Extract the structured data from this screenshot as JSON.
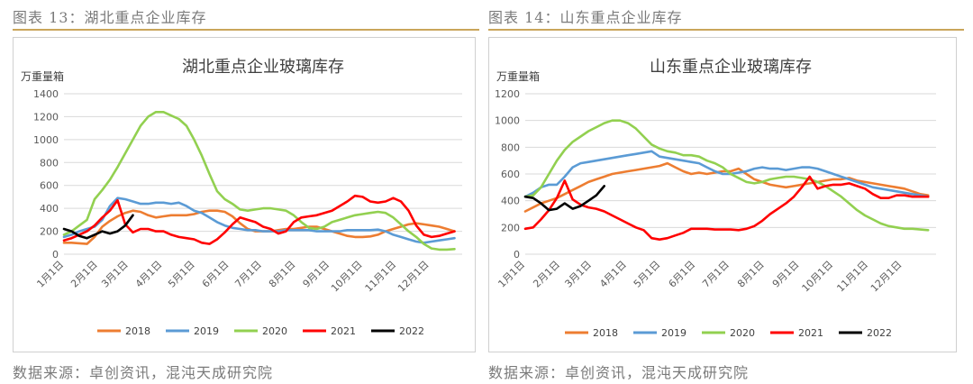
{
  "figures": [
    {
      "caption": "图表 13：湖北重点企业库存",
      "source": "数据来源：卓创资讯，混沌天成研究院"
    },
    {
      "caption": "图表 14：山东重点企业库存",
      "source": "数据来源：卓创资讯，混沌天成研究院"
    }
  ],
  "colors": {
    "2018": "#ed7d31",
    "2019": "#5b9bd5",
    "2020": "#92d050",
    "2021": "#ff0000",
    "2022": "#000000",
    "rule": "#c9a55a"
  },
  "chart_data": [
    {
      "type": "line",
      "title": "湖北重点企业玻璃库存",
      "ylabel": "万重量箱",
      "ylim": [
        0,
        1400
      ],
      "yticks": [
        0,
        200,
        400,
        600,
        800,
        1000,
        1200,
        1400
      ],
      "xlim": [
        1,
        53
      ],
      "xtick_labels": [
        "1月1日",
        "2月1日",
        "3月1日",
        "4月1日",
        "5月1日",
        "6月1日",
        "7月1日",
        "8月1日",
        "9月1日",
        "10月1日",
        "11月1日",
        "12月1日"
      ],
      "legend_position": "bottom",
      "grid": "horizontal",
      "series": [
        {
          "name": "2018",
          "x": [
            1,
            2,
            3,
            4,
            5,
            6,
            7,
            8,
            9,
            10,
            11,
            12,
            13,
            14,
            15,
            16,
            17,
            18,
            19,
            20,
            21,
            22,
            23,
            24,
            25,
            26,
            27,
            28,
            29,
            30,
            31,
            32,
            33,
            34,
            35,
            36,
            37,
            38,
            39,
            40,
            41,
            42,
            43,
            44,
            45,
            46,
            47,
            48,
            49,
            50,
            51,
            52
          ],
          "values": [
            100,
            100,
            95,
            90,
            150,
            240,
            290,
            330,
            360,
            380,
            370,
            340,
            320,
            330,
            340,
            340,
            340,
            350,
            370,
            380,
            380,
            370,
            330,
            270,
            220,
            200,
            200,
            200,
            210,
            220,
            220,
            230,
            240,
            240,
            220,
            200,
            180,
            160,
            150,
            150,
            155,
            170,
            200,
            220,
            240,
            260,
            270,
            260,
            250,
            240,
            220,
            200
          ]
        },
        {
          "name": "2019",
          "x": [
            1,
            2,
            3,
            4,
            5,
            6,
            7,
            8,
            9,
            10,
            11,
            12,
            13,
            14,
            15,
            16,
            17,
            18,
            19,
            20,
            21,
            22,
            23,
            24,
            25,
            26,
            27,
            28,
            29,
            30,
            31,
            32,
            33,
            34,
            35,
            36,
            37,
            38,
            39,
            40,
            41,
            42,
            43,
            44,
            45,
            46,
            47,
            48,
            49,
            50,
            51,
            52
          ],
          "values": [
            150,
            170,
            200,
            220,
            240,
            300,
            420,
            490,
            480,
            460,
            440,
            440,
            450,
            450,
            440,
            450,
            420,
            380,
            360,
            320,
            280,
            250,
            230,
            220,
            210,
            210,
            200,
            200,
            200,
            210,
            210,
            210,
            210,
            200,
            200,
            200,
            200,
            210,
            210,
            210,
            210,
            215,
            200,
            170,
            150,
            130,
            110,
            100,
            110,
            120,
            130,
            140
          ]
        },
        {
          "name": "2020",
          "x": [
            1,
            2,
            3,
            4,
            5,
            6,
            7,
            8,
            9,
            10,
            11,
            12,
            13,
            14,
            15,
            16,
            17,
            18,
            19,
            20,
            21,
            22,
            23,
            24,
            25,
            26,
            27,
            28,
            29,
            30,
            31,
            32,
            33,
            34,
            35,
            36,
            37,
            38,
            39,
            40,
            41,
            42,
            43,
            44,
            45,
            46,
            47,
            48,
            49,
            50,
            51,
            52
          ],
          "values": [
            170,
            200,
            250,
            300,
            480,
            560,
            650,
            760,
            880,
            1000,
            1120,
            1200,
            1240,
            1240,
            1210,
            1180,
            1120,
            1000,
            860,
            700,
            550,
            480,
            440,
            390,
            380,
            390,
            400,
            400,
            390,
            380,
            340,
            280,
            230,
            220,
            240,
            280,
            300,
            320,
            340,
            350,
            360,
            370,
            360,
            320,
            260,
            200,
            150,
            90,
            50,
            40,
            40,
            45
          ]
        },
        {
          "name": "2021",
          "x": [
            1,
            2,
            3,
            4,
            5,
            6,
            7,
            8,
            9,
            10,
            11,
            12,
            13,
            14,
            15,
            16,
            17,
            18,
            19,
            20,
            21,
            22,
            23,
            24,
            25,
            26,
            27,
            28,
            29,
            30,
            31,
            32,
            33,
            34,
            35,
            36,
            37,
            38,
            39,
            40,
            41,
            42,
            43,
            44,
            45,
            46,
            47,
            48,
            49,
            50,
            51,
            52
          ],
          "values": [
            120,
            140,
            170,
            200,
            250,
            320,
            380,
            470,
            260,
            190,
            220,
            220,
            200,
            200,
            170,
            150,
            140,
            130,
            100,
            90,
            130,
            190,
            260,
            320,
            300,
            280,
            240,
            220,
            180,
            200,
            280,
            320,
            330,
            340,
            360,
            380,
            420,
            460,
            510,
            500,
            460,
            450,
            460,
            490,
            460,
            380,
            250,
            170,
            150,
            160,
            180,
            200
          ]
        },
        {
          "name": "2022",
          "x": [
            1,
            2,
            3,
            4,
            5,
            6,
            7,
            8,
            9,
            10
          ],
          "values": [
            220,
            200,
            160,
            140,
            170,
            200,
            180,
            200,
            250,
            340
          ]
        }
      ]
    },
    {
      "type": "line",
      "title": "山东重点企业玻璃库存",
      "ylabel": "万重量箱",
      "ylim": [
        0,
        1200
      ],
      "yticks": [
        0,
        200,
        400,
        600,
        800,
        1000,
        1200
      ],
      "xlim": [
        1,
        53
      ],
      "xtick_labels": [
        "1月1日",
        "2月1日",
        "3月1日",
        "4月1日",
        "5月1日",
        "6月1日",
        "7月1日",
        "8月1日",
        "9月1日",
        "10月1日",
        "11月1日",
        "12月1日"
      ],
      "legend_position": "bottom",
      "grid": "horizontal",
      "series": [
        {
          "name": "2018",
          "x": [
            1,
            2,
            3,
            4,
            5,
            6,
            7,
            8,
            9,
            10,
            11,
            12,
            13,
            14,
            15,
            16,
            17,
            18,
            19,
            20,
            21,
            22,
            23,
            24,
            25,
            26,
            27,
            28,
            29,
            30,
            31,
            32,
            33,
            34,
            35,
            36,
            37,
            38,
            39,
            40,
            41,
            42,
            43,
            44,
            45,
            46,
            47,
            48,
            49,
            50,
            51,
            52
          ],
          "values": [
            320,
            350,
            380,
            400,
            420,
            450,
            480,
            510,
            540,
            560,
            580,
            600,
            610,
            620,
            630,
            640,
            650,
            660,
            680,
            650,
            620,
            600,
            610,
            600,
            610,
            620,
            620,
            640,
            600,
            560,
            540,
            520,
            510,
            500,
            510,
            520,
            530,
            540,
            550,
            560,
            560,
            570,
            550,
            540,
            530,
            520,
            510,
            500,
            490,
            470,
            450,
            440
          ]
        },
        {
          "name": "2019",
          "x": [
            1,
            2,
            3,
            4,
            5,
            6,
            7,
            8,
            9,
            10,
            11,
            12,
            13,
            14,
            15,
            16,
            17,
            18,
            19,
            20,
            21,
            22,
            23,
            24,
            25,
            26,
            27,
            28,
            29,
            30,
            31,
            32,
            33,
            34,
            35,
            36,
            37,
            38,
            39,
            40,
            41,
            42,
            43,
            44,
            45,
            46,
            47,
            48,
            49,
            50,
            51,
            52
          ],
          "values": [
            430,
            460,
            500,
            520,
            520,
            580,
            650,
            680,
            690,
            700,
            710,
            720,
            730,
            740,
            750,
            760,
            770,
            730,
            720,
            710,
            700,
            690,
            680,
            650,
            620,
            600,
            600,
            610,
            620,
            640,
            650,
            640,
            640,
            630,
            640,
            650,
            650,
            640,
            620,
            600,
            580,
            560,
            540,
            520,
            500,
            490,
            480,
            470,
            460,
            450,
            440,
            430
          ]
        },
        {
          "name": "2020",
          "x": [
            1,
            2,
            3,
            4,
            5,
            6,
            7,
            8,
            9,
            10,
            11,
            12,
            13,
            14,
            15,
            16,
            17,
            18,
            19,
            20,
            21,
            22,
            23,
            24,
            25,
            26,
            27,
            28,
            29,
            30,
            31,
            32,
            33,
            34,
            35,
            36,
            37,
            38,
            39,
            40,
            41,
            42,
            43,
            44,
            45,
            46,
            47,
            48,
            49,
            50,
            51,
            52
          ],
          "values": [
            430,
            440,
            500,
            600,
            700,
            780,
            840,
            880,
            920,
            950,
            980,
            1000,
            1000,
            980,
            940,
            880,
            820,
            790,
            770,
            760,
            740,
            740,
            730,
            700,
            680,
            650,
            600,
            570,
            540,
            530,
            540,
            560,
            570,
            580,
            580,
            570,
            560,
            540,
            510,
            470,
            430,
            380,
            330,
            290,
            260,
            230,
            210,
            200,
            190,
            190,
            185,
            180
          ]
        },
        {
          "name": "2021",
          "x": [
            1,
            2,
            3,
            4,
            5,
            6,
            7,
            8,
            9,
            10,
            11,
            12,
            13,
            14,
            15,
            16,
            17,
            18,
            19,
            20,
            21,
            22,
            23,
            24,
            25,
            26,
            27,
            28,
            29,
            30,
            31,
            32,
            33,
            34,
            35,
            36,
            37,
            38,
            39,
            40,
            41,
            42,
            43,
            44,
            45,
            46,
            47,
            48,
            49,
            50,
            51,
            52
          ],
          "values": [
            190,
            200,
            260,
            330,
            420,
            550,
            410,
            370,
            350,
            340,
            320,
            290,
            260,
            230,
            200,
            180,
            120,
            110,
            120,
            140,
            160,
            190,
            190,
            190,
            185,
            185,
            185,
            180,
            190,
            210,
            250,
            300,
            340,
            380,
            430,
            500,
            580,
            490,
            510,
            520,
            520,
            530,
            510,
            490,
            450,
            420,
            420,
            440,
            440,
            430,
            430,
            430
          ]
        },
        {
          "name": "2022",
          "x": [
            1,
            2,
            3,
            4,
            5,
            6,
            7,
            8,
            9,
            10,
            11
          ],
          "values": [
            430,
            420,
            380,
            330,
            340,
            380,
            340,
            360,
            400,
            440,
            510
          ]
        }
      ]
    }
  ]
}
